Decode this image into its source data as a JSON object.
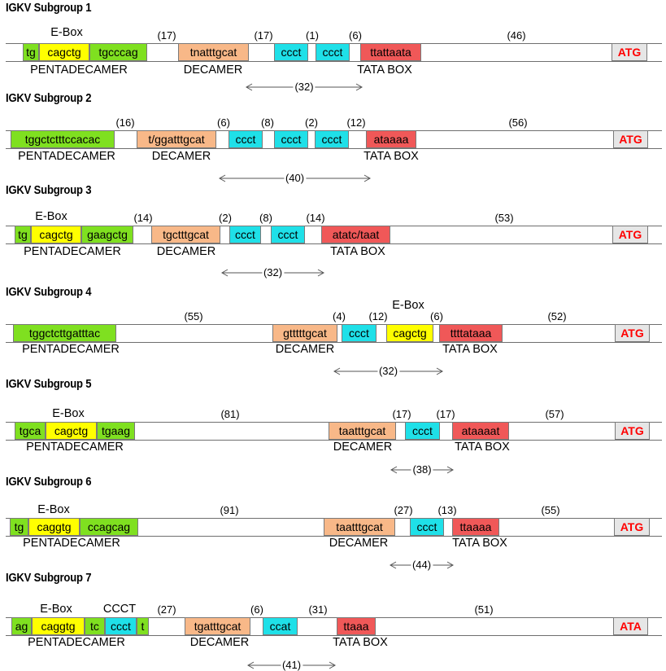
{
  "colors": {
    "green": "#7fe020",
    "yellow": "#ffff00",
    "cyan": "#1fe0e8",
    "orange": "#f8b888",
    "red": "#f05858",
    "gray": "#e6e6e6",
    "atg_text": "#ff0000"
  },
  "subgroups": [
    {
      "title": "IGKV Subgroup 1",
      "elements": [
        {
          "text": "tg",
          "color": "green"
        },
        {
          "text": "cagctg",
          "color": "yellow"
        },
        {
          "text": "tgcccag",
          "color": "green"
        },
        {
          "text": "tnatttgcat",
          "color": "orange"
        },
        {
          "text": "ccct",
          "color": "cyan"
        },
        {
          "text": "ccct",
          "color": "cyan"
        },
        {
          "text": "ttattaata",
          "color": "red"
        },
        {
          "text": "ATG",
          "color": "gray"
        }
      ],
      "labels": [
        "E-Box",
        "PENTADECAMER",
        "DECAMER",
        "TATA BOX"
      ],
      "spacers": [
        "(17)",
        "(17)",
        "(1)",
        "(6)",
        "(46)"
      ],
      "arrow": "(32)"
    },
    {
      "title": "IGKV Subgroup 2",
      "elements": [
        {
          "text": "tggctctttccacac",
          "color": "green"
        },
        {
          "text": "t/ggatttgcat",
          "color": "orange"
        },
        {
          "text": "ccct",
          "color": "cyan"
        },
        {
          "text": "ccct",
          "color": "cyan"
        },
        {
          "text": "ccct",
          "color": "cyan"
        },
        {
          "text": "ataaaa",
          "color": "red"
        },
        {
          "text": "ATG",
          "color": "gray"
        }
      ],
      "labels": [
        "PENTADECAMER",
        "DECAMER",
        "TATA BOX"
      ],
      "spacers": [
        "(16)",
        "(6)",
        "(8)",
        "(2)",
        "(12)",
        "(56)"
      ],
      "arrow": "(40)"
    },
    {
      "title": "IGKV Subgroup 3",
      "elements": [
        {
          "text": "tg",
          "color": "green"
        },
        {
          "text": "cagctg",
          "color": "yellow"
        },
        {
          "text": "gaagctg",
          "color": "green"
        },
        {
          "text": "tgctttgcat",
          "color": "orange"
        },
        {
          "text": "ccct",
          "color": "cyan"
        },
        {
          "text": "ccct",
          "color": "cyan"
        },
        {
          "text": "atatc/taat",
          "color": "red"
        },
        {
          "text": "ATG",
          "color": "gray"
        }
      ],
      "labels": [
        "E-Box",
        "PENTADECAMER",
        "DECAMER",
        "TATA BOX"
      ],
      "spacers": [
        "(14)",
        "(2)",
        "(8)",
        "(14)",
        "(53)"
      ],
      "arrow": "(32)"
    },
    {
      "title": "IGKV Subgroup 4",
      "elements": [
        {
          "text": "tggctcttgatttac",
          "color": "green"
        },
        {
          "text": "gtttttgcat",
          "color": "orange"
        },
        {
          "text": "ccct",
          "color": "cyan"
        },
        {
          "text": "cagctg",
          "color": "yellow"
        },
        {
          "text": "ttttataaa",
          "color": "red"
        },
        {
          "text": "ATG",
          "color": "gray"
        }
      ],
      "labels": [
        "E-Box",
        "PENTADECAMER",
        "DECAMER",
        "TATA BOX"
      ],
      "spacers": [
        "(55)",
        "(4)",
        "(12)",
        "(6)",
        "(52)"
      ],
      "arrow": "(32)"
    },
    {
      "title": "IGKV Subgroup 5",
      "elements": [
        {
          "text": "tgca",
          "color": "green"
        },
        {
          "text": "cagctg",
          "color": "yellow"
        },
        {
          "text": "tgaag",
          "color": "green"
        },
        {
          "text": "taatttgcat",
          "color": "orange"
        },
        {
          "text": "ccct",
          "color": "cyan"
        },
        {
          "text": "ataaaat",
          "color": "red"
        },
        {
          "text": "ATG",
          "color": "gray"
        }
      ],
      "labels": [
        "E-Box",
        "PENTADECAMER",
        "DECAMER",
        "TATA BOX"
      ],
      "spacers": [
        "(81)",
        "(17)",
        "(17)",
        "(57)"
      ],
      "arrow": "(38)"
    },
    {
      "title": "IGKV Subgroup 6",
      "elements": [
        {
          "text": "tg",
          "color": "green"
        },
        {
          "text": "caggtg",
          "color": "yellow"
        },
        {
          "text": "ccagcag",
          "color": "green"
        },
        {
          "text": "taatttgcat",
          "color": "orange"
        },
        {
          "text": "ccct",
          "color": "cyan"
        },
        {
          "text": "ttaaaa",
          "color": "red"
        },
        {
          "text": "ATG",
          "color": "gray"
        }
      ],
      "labels": [
        "E-Box",
        "PENTADECAMER",
        "DECAMER",
        "TATA BOX"
      ],
      "spacers": [
        "(91)",
        "(27)",
        "(13)",
        "(55)"
      ],
      "arrow": "(44)"
    },
    {
      "title": "IGKV Subgroup 7",
      "elements": [
        {
          "text": "ag",
          "color": "green"
        },
        {
          "text": "caggtg",
          "color": "yellow"
        },
        {
          "text": "tc",
          "color": "green"
        },
        {
          "text": "ccct",
          "color": "cyan"
        },
        {
          "text": "t",
          "color": "green"
        },
        {
          "text": "tgatttgcat",
          "color": "orange"
        },
        {
          "text": "ccat",
          "color": "cyan"
        },
        {
          "text": "ttaaa",
          "color": "red"
        },
        {
          "text": "ATA",
          "color": "gray"
        }
      ],
      "labels": [
        "E-Box",
        "CCCT",
        "PENTADECAMER",
        "DECAMER",
        "TATA BOX"
      ],
      "spacers": [
        "(27)",
        "(6)",
        "(31)",
        "(51)"
      ],
      "arrow": "(41)"
    }
  ]
}
